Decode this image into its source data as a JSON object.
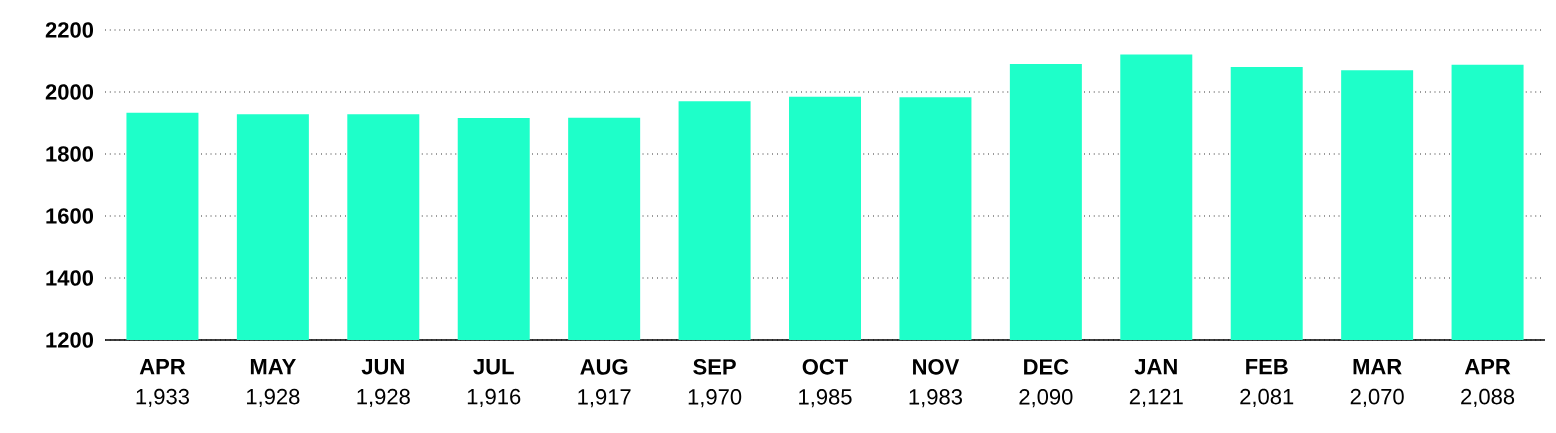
{
  "chart_data": {
    "type": "bar",
    "categories": [
      "APR",
      "MAY",
      "JUN",
      "JUL",
      "AUG",
      "SEP",
      "OCT",
      "NOV",
      "DEC",
      "JAN",
      "FEB",
      "MAR",
      "APR"
    ],
    "values": [
      1933,
      1928,
      1928,
      1916,
      1917,
      1970,
      1985,
      1983,
      2090,
      2121,
      2081,
      2070,
      2088
    ],
    "value_labels": [
      "1,933",
      "1,928",
      "1,928",
      "1,916",
      "1,917",
      "1,970",
      "1,985",
      "1,983",
      "2,090",
      "2,121",
      "2,081",
      "2,070",
      "2,088"
    ],
    "color": "#1effc9",
    "ylim": [
      1200,
      2200
    ],
    "yticks": [
      1200,
      1400,
      1600,
      1800,
      2000,
      2200
    ],
    "grid": "y"
  }
}
